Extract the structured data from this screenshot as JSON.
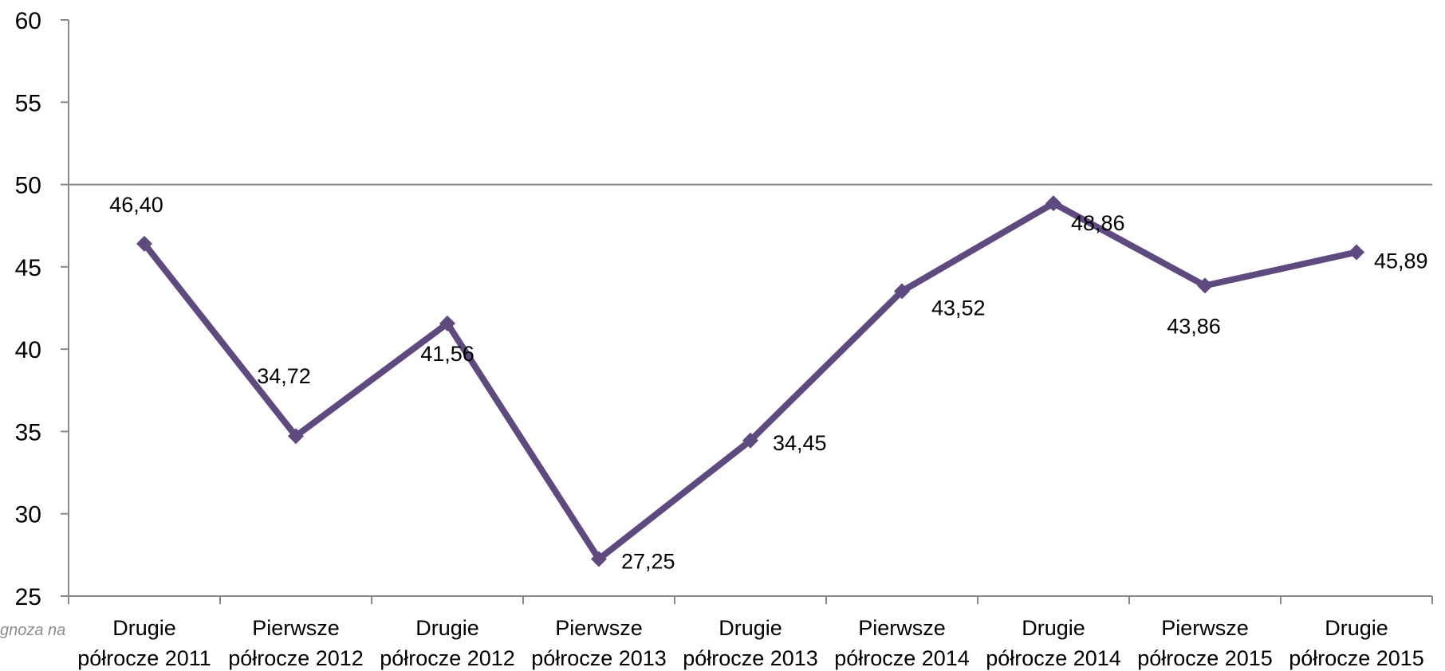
{
  "side_note": "gnoza na",
  "colors": {
    "series": "#5f4a80",
    "axis": "#898989",
    "reference_line": "#898989"
  },
  "chart_data": {
    "type": "line",
    "title": "",
    "xlabel": "",
    "ylabel": "",
    "ylim": [
      25,
      60
    ],
    "y_ticks": [
      "60",
      "55",
      "50",
      "45",
      "40",
      "35",
      "30",
      "25"
    ],
    "y_tick_values": [
      60,
      55,
      50,
      45,
      40,
      35,
      30,
      25
    ],
    "reference_line": 50,
    "grid": false,
    "legend": "none",
    "categories": [
      [
        "Drugie",
        "półrocze 2011"
      ],
      [
        "Pierwsze",
        "półrocze 2012"
      ],
      [
        "Drugie",
        "półrocze 2012"
      ],
      [
        "Pierwsze",
        "półrocze 2013"
      ],
      [
        "Drugie",
        "półrocze 2013"
      ],
      [
        "Pierwsze",
        "półrocze 2014"
      ],
      [
        "Drugie",
        "półrocze 2014"
      ],
      [
        "Pierwsze",
        "półrocze 2015"
      ],
      [
        "Drugie",
        "półrocze 2015"
      ]
    ],
    "series": [
      {
        "values": [
          46.4,
          34.72,
          41.56,
          27.25,
          34.45,
          43.52,
          48.86,
          43.86,
          45.89
        ],
        "labels": [
          "46,40",
          "34,72",
          "41,56",
          "27,25",
          "34,45",
          "43,52",
          "48,86",
          "43,86",
          "45,89"
        ]
      }
    ]
  }
}
